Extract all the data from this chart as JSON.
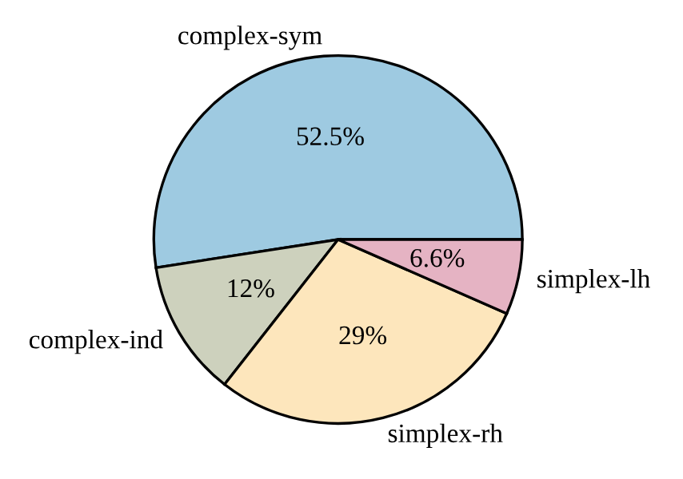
{
  "chart_data": {
    "type": "pie",
    "categories": [
      "complex-sym",
      "complex-ind",
      "simplex-rh",
      "simplex-lh"
    ],
    "values": [
      52.5,
      12,
      29,
      6.6
    ],
    "value_labels": [
      "52.5%",
      "12%",
      "29%",
      "6.6%"
    ],
    "colors": [
      "#9ecae1",
      "#cdd1bd",
      "#fde6bc",
      "#e5b3c3"
    ]
  }
}
